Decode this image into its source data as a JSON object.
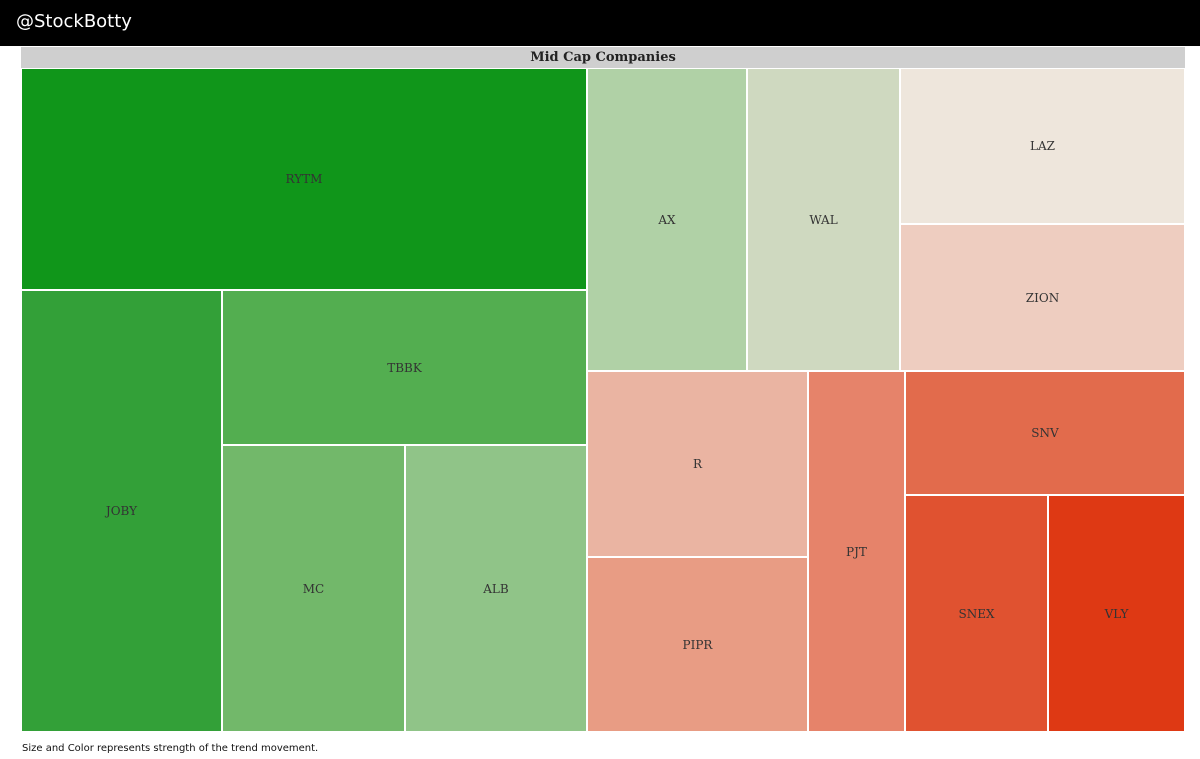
{
  "header": {
    "brand": "@StockBotty"
  },
  "footnote": "Size and Color represents strength of the trend movement.",
  "chart_data": {
    "type": "treemap",
    "title": "Mid Cap Companies",
    "tiles": [
      {
        "label": "RYTM",
        "color": "#10961a"
      },
      {
        "label": "JOBY",
        "color": "#33a038"
      },
      {
        "label": "TBBK",
        "color": "#53ae50"
      },
      {
        "label": "MC",
        "color": "#72b86a"
      },
      {
        "label": "ALB",
        "color": "#90c488"
      },
      {
        "label": "AX",
        "color": "#b0d1a6"
      },
      {
        "label": "WAL",
        "color": "#cfd9c0"
      },
      {
        "label": "LAZ",
        "color": "#eee6dc"
      },
      {
        "label": "ZION",
        "color": "#eecdc0"
      },
      {
        "label": "R",
        "color": "#eab4a2"
      },
      {
        "label": "PIPR",
        "color": "#e89c84"
      },
      {
        "label": "PJT",
        "color": "#e6836a"
      },
      {
        "label": "SNV",
        "color": "#e26b4c"
      },
      {
        "label": "SNEX",
        "color": "#e05230"
      },
      {
        "label": "VLY",
        "color": "#de3914"
      }
    ]
  }
}
